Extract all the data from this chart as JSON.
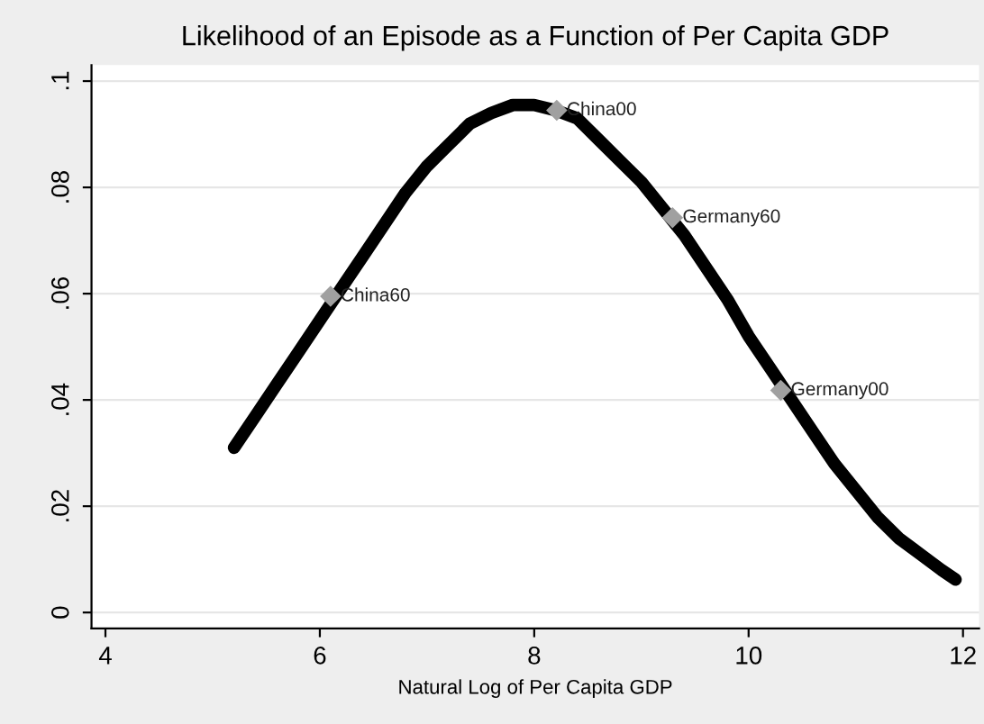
{
  "chart_data": {
    "type": "line",
    "title": "Likelihood of an Episode as a Function of Per Capita GDP",
    "xlabel": "Natural Log of Per Capita GDP",
    "series": [
      {
        "color": "#000000",
        "marker": "none",
        "x": [
          5.2,
          5.4,
          5.6,
          5.8,
          6.0,
          6.2,
          6.4,
          6.6,
          6.8,
          7.0,
          7.2,
          7.4,
          7.6,
          7.8,
          8.0,
          8.2,
          8.4,
          8.6,
          8.8,
          9.0,
          9.2,
          9.4,
          9.6,
          9.8,
          10.0,
          10.2,
          10.4,
          10.6,
          10.8,
          11.0,
          11.2,
          11.4,
          11.6,
          11.8,
          11.93
        ],
        "values": [
          0.031,
          0.037,
          0.043,
          0.049,
          0.055,
          0.061,
          0.067,
          0.073,
          0.079,
          0.084,
          0.088,
          0.092,
          0.094,
          0.0955,
          0.0955,
          0.0945,
          0.093,
          0.089,
          0.085,
          0.081,
          0.076,
          0.071,
          0.065,
          0.059,
          0.052,
          0.046,
          0.04,
          0.034,
          0.028,
          0.023,
          0.018,
          0.014,
          0.011,
          0.008,
          0.0062
        ]
      },
      {
        "type": "scatter",
        "color": "#a0a0a0",
        "marker": "diamond",
        "x": [
          6.1,
          8.21,
          9.29,
          10.3
        ],
        "values": [
          0.0595,
          0.0945,
          0.0743,
          0.0418
        ]
      }
    ],
    "annotations": [
      {
        "text": "China60",
        "x": 6.1,
        "y": 0.0595
      },
      {
        "text": "China00",
        "x": 8.21,
        "y": 0.0945
      },
      {
        "text": "Germany60",
        "x": 9.29,
        "y": 0.0743
      },
      {
        "text": "Germany00",
        "x": 10.3,
        "y": 0.0418
      }
    ],
    "xlim": [
      3.87,
      12.15
    ],
    "xticks": [
      4,
      6,
      8,
      10,
      12
    ],
    "ylim": [
      -0.003,
      0.103
    ],
    "yticks": [
      0,
      {
        "value": 0.02,
        "label": ".02"
      },
      {
        "value": 0.04,
        "label": ".04"
      },
      {
        "value": 0.06,
        "label": ".06"
      },
      {
        "value": 0.08,
        "label": ".08"
      },
      {
        "value": 0.1,
        "label": ".1"
      }
    ],
    "grid": "y",
    "legend": false
  }
}
